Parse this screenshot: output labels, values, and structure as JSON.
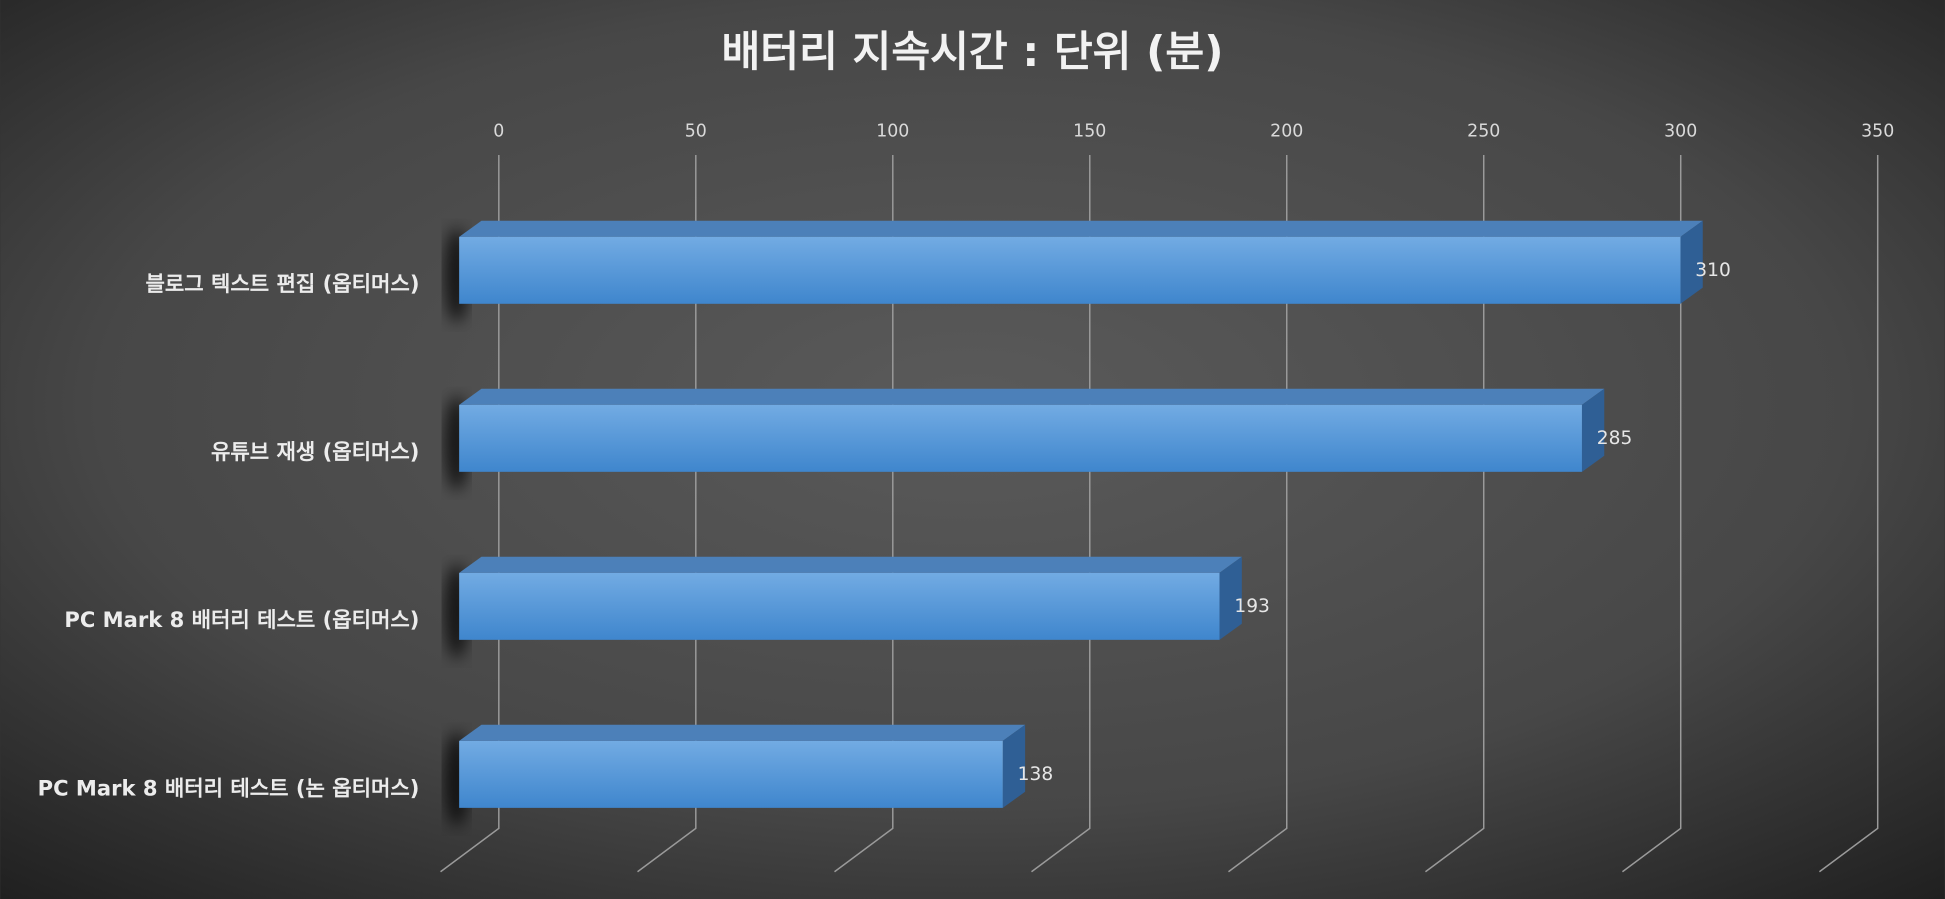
{
  "chart_data": {
    "type": "bar",
    "orientation": "horizontal",
    "title": "배터리 지속시간 : 단위 (분)",
    "categories": [
      "블로그 텍스트 편집 (옵티머스)",
      "유튜브 재생 (옵티머스)",
      "PC Mark 8 배터리 테스트 (옵티머스)",
      "PC Mark 8 배터리 테스트 (논 옵티머스)"
    ],
    "values": [
      310,
      285,
      193,
      138
    ],
    "color": "#4a8fd6",
    "xlim": [
      0,
      350
    ],
    "xticks": [
      0,
      50,
      100,
      150,
      200,
      250,
      300,
      350
    ],
    "grid": true
  }
}
